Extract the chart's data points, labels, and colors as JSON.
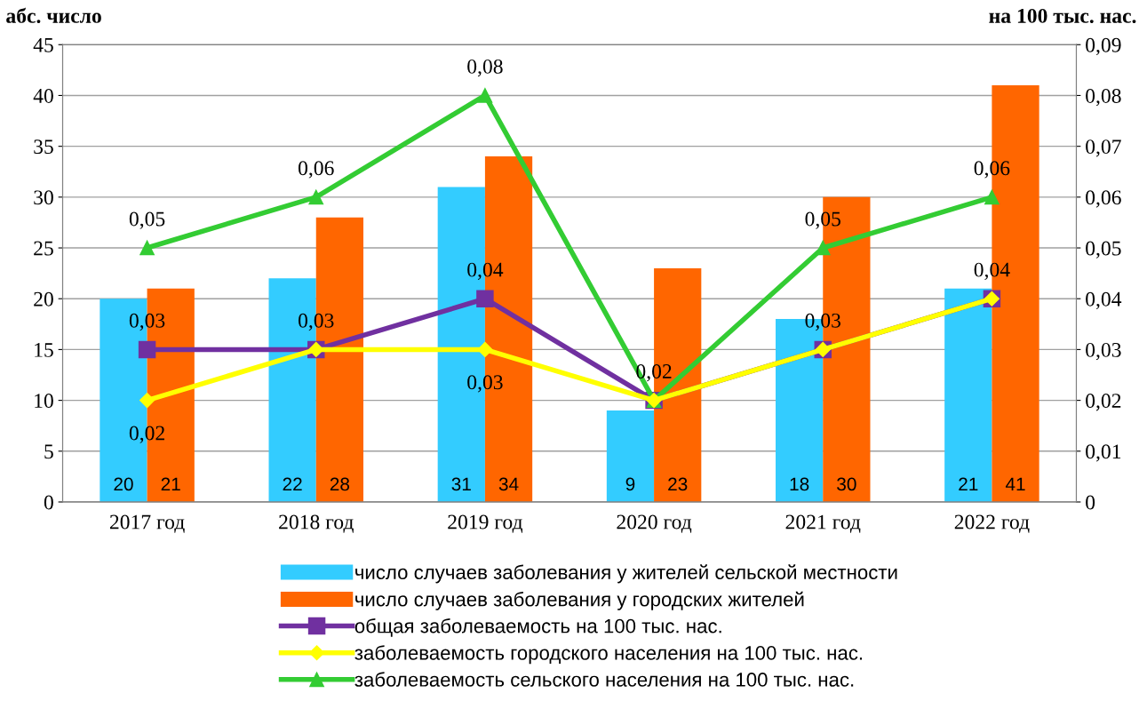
{
  "chart_data": {
    "type": "bar",
    "ylabel": "абс. число",
    "y2label": "на 100 тыс. нас.",
    "categories": [
      "2017 год",
      "2018 год",
      "2019 год",
      "2020 год",
      "2021 год",
      "2022 год"
    ],
    "series": [
      {
        "name": "число случаев заболевания у жителей сельской местности",
        "color": "#33ccff",
        "values": [
          20,
          22,
          31,
          9,
          18,
          21
        ]
      },
      {
        "name": "число случаев заболевания у городских жителей",
        "color": "#ff6600",
        "values": [
          21,
          28,
          34,
          23,
          30,
          41
        ]
      },
      {
        "name": "общая заболеваемость на 100 тыс. нас.",
        "type": "line",
        "axis": "y2",
        "marker": "square",
        "color": "#7030a0",
        "values": [
          0.03,
          0.03,
          0.04,
          0.02,
          0.03,
          0.04
        ],
        "value_labels": [
          "0,03",
          "0,03",
          "0,04",
          "0,02",
          "0,03",
          "0,04"
        ]
      },
      {
        "name": "заболеваемость городского населения на 100 тыс. нас.",
        "type": "line",
        "axis": "y2",
        "marker": "diamond",
        "color": "#ffff00",
        "values": [
          0.02,
          0.03,
          0.03,
          0.02,
          0.03,
          0.04
        ],
        "value_labels": [
          "0,02",
          null,
          "0,03",
          null,
          null,
          null
        ]
      },
      {
        "name": "заболеваемость сельского населения на 100 тыс. нас.",
        "type": "line",
        "axis": "y2",
        "marker": "triangle",
        "color": "#33cc33",
        "values": [
          0.05,
          0.06,
          0.08,
          0.02,
          0.05,
          0.06
        ],
        "value_labels": [
          "0,05",
          "0,06",
          "0,08",
          null,
          "0,05",
          "0,06"
        ]
      }
    ],
    "ylim": [
      0,
      45
    ],
    "yticks": [
      0,
      5,
      10,
      15,
      20,
      25,
      30,
      35,
      40,
      45
    ],
    "y2lim": [
      0,
      0.09
    ],
    "y2ticks": [
      0,
      {
        "value": 0.01,
        "label": "0,01"
      },
      {
        "value": 0.02,
        "label": "0,02"
      },
      {
        "value": 0.03,
        "label": "0,03"
      },
      {
        "value": 0.04,
        "label": "0,04"
      },
      {
        "value": 0.05,
        "label": "0,05"
      },
      {
        "value": 0.06,
        "label": "0,06"
      },
      {
        "value": 0.07,
        "label": "0,07"
      },
      {
        "value": 0.08,
        "label": "0,08"
      },
      {
        "value": 0.09,
        "label": "0,09"
      }
    ],
    "data_labels": true,
    "grid": "y",
    "legend": "bottom"
  }
}
